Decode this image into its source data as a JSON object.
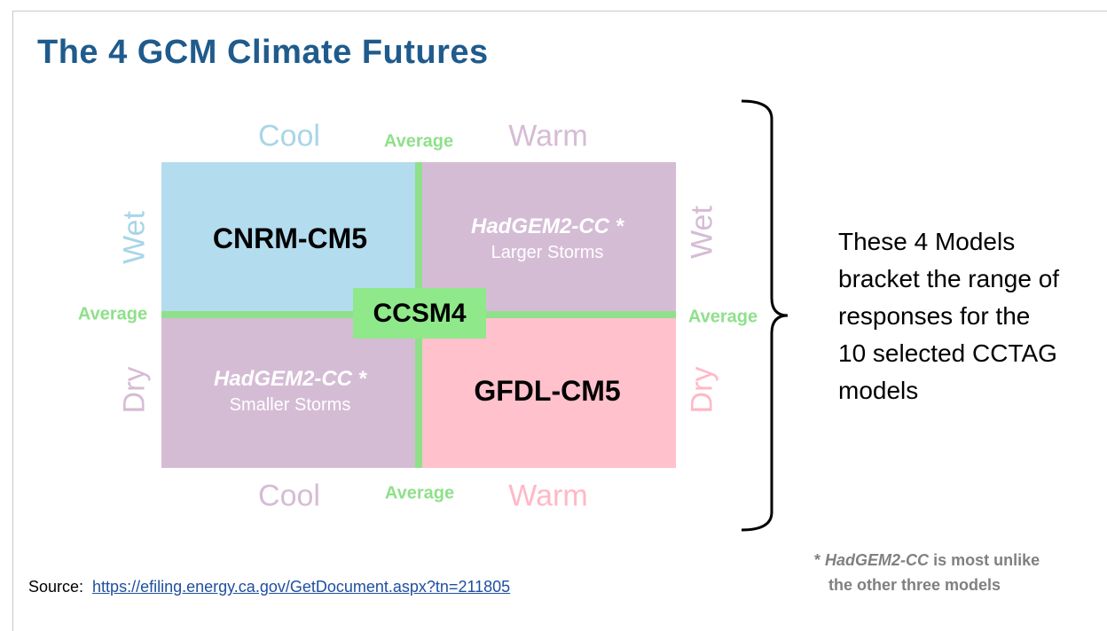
{
  "title": "The 4 GCM Climate Futures",
  "top_labels": [
    "Cool",
    "Average",
    "Warm"
  ],
  "bottom_labels": [
    "Cool",
    "Average",
    "Warm"
  ],
  "left_labels": [
    "Wet",
    "Average",
    "Dry"
  ],
  "right_labels": [
    "Wet",
    "Average",
    "Dry"
  ],
  "quadrants": {
    "top_left": {
      "model": "CNRM-CM5"
    },
    "top_right": {
      "model": "HadGEM2-CC *",
      "note": "Larger Storms"
    },
    "bottom_left": {
      "model": "HadGEM2-CC *",
      "note": "Smaller Storms"
    },
    "bottom_right": {
      "model": "GFDL-CM5"
    },
    "center": {
      "model": "CCSM4"
    }
  },
  "summary_lines": [
    "These 4 Models",
    "bracket the range of",
    "responses for the",
    "10 selected CCTAG",
    "models"
  ],
  "footnote": {
    "marker": "*",
    "model": "HadGEM2-CC",
    "text": "is most unlike",
    "text2": "the other three models"
  },
  "source": {
    "label": "Source:",
    "link": "https://efiling.energy.ca.gov/GetDocument.aspx?tn=211805"
  }
}
